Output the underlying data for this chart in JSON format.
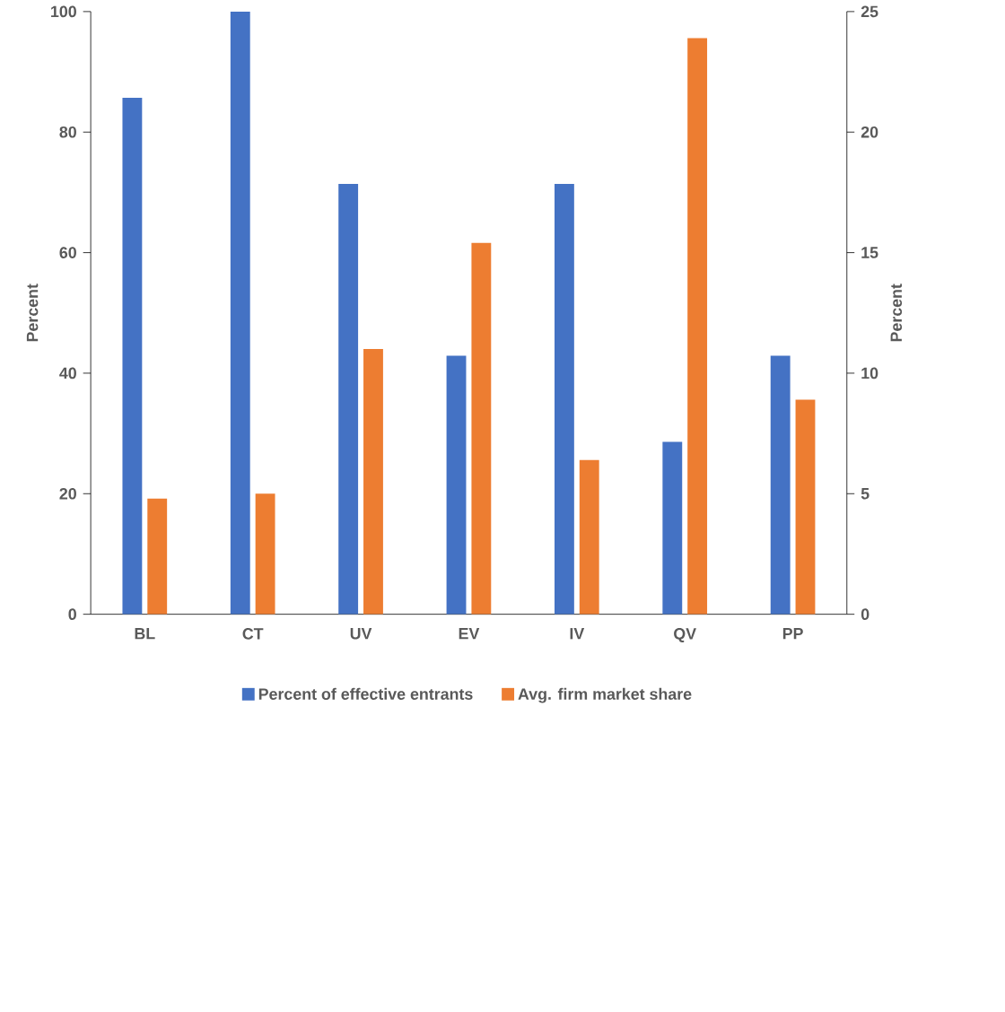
{
  "chart_data": {
    "type": "bar",
    "categories": [
      "BL",
      "CT",
      "UV",
      "EV",
      "IV",
      "QV",
      "PP"
    ],
    "ylabel": "Percent",
    "y2label": "Percent",
    "ylim": [
      0,
      100
    ],
    "yticks": [
      0,
      20,
      40,
      60,
      80,
      100
    ],
    "y2lim": [
      0,
      25
    ],
    "y2ticks": [
      0,
      5,
      10,
      15,
      20,
      25
    ],
    "legend": "bottom",
    "grid": false,
    "series": [
      {
        "name": "Percent of effective entrants",
        "color": "#4472c4",
        "values": [
          85.7,
          100,
          71.4,
          42.9,
          71.4,
          28.6,
          42.9
        ]
      },
      {
        "name": "Avg. firm market share",
        "color": "#ed7d31",
        "axis": "y2",
        "values": [
          4.8,
          5.0,
          11.0,
          15.4,
          6.4,
          23.9,
          8.9
        ]
      }
    ]
  }
}
